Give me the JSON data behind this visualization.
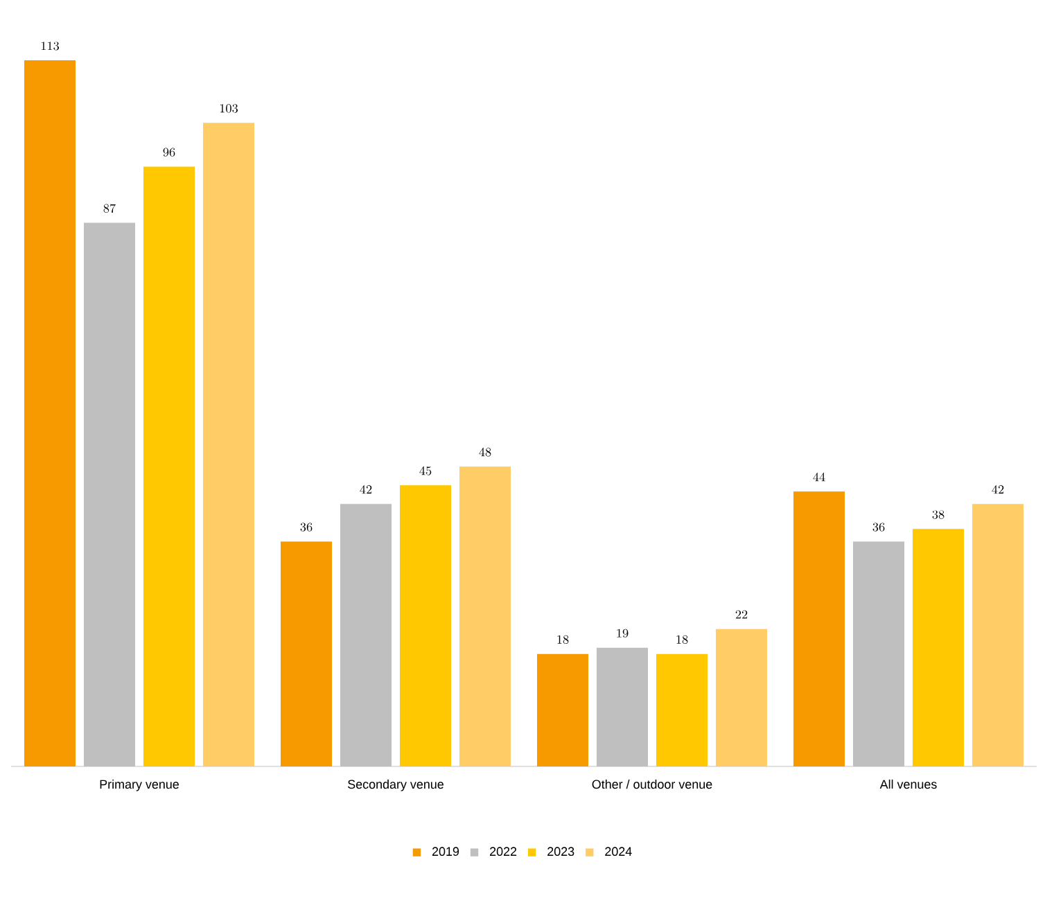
{
  "chart_data": {
    "type": "bar",
    "categories": [
      "Primary venue",
      "Secondary venue",
      "Other  / outdoor venue",
      "All venues"
    ],
    "series": [
      {
        "name": "2019",
        "color": "#f79a00",
        "values": [
          113,
          36,
          18,
          44
        ]
      },
      {
        "name": "2022",
        "color": "#bfbfbf",
        "values": [
          87,
          42,
          19,
          36
        ]
      },
      {
        "name": "2023",
        "color": "#ffc800",
        "values": [
          96,
          45,
          18,
          38
        ]
      },
      {
        "name": "2024",
        "color": "#ffcc66",
        "values": [
          103,
          48,
          22,
          42
        ]
      }
    ],
    "data_labels": true,
    "legend": "bottom"
  }
}
